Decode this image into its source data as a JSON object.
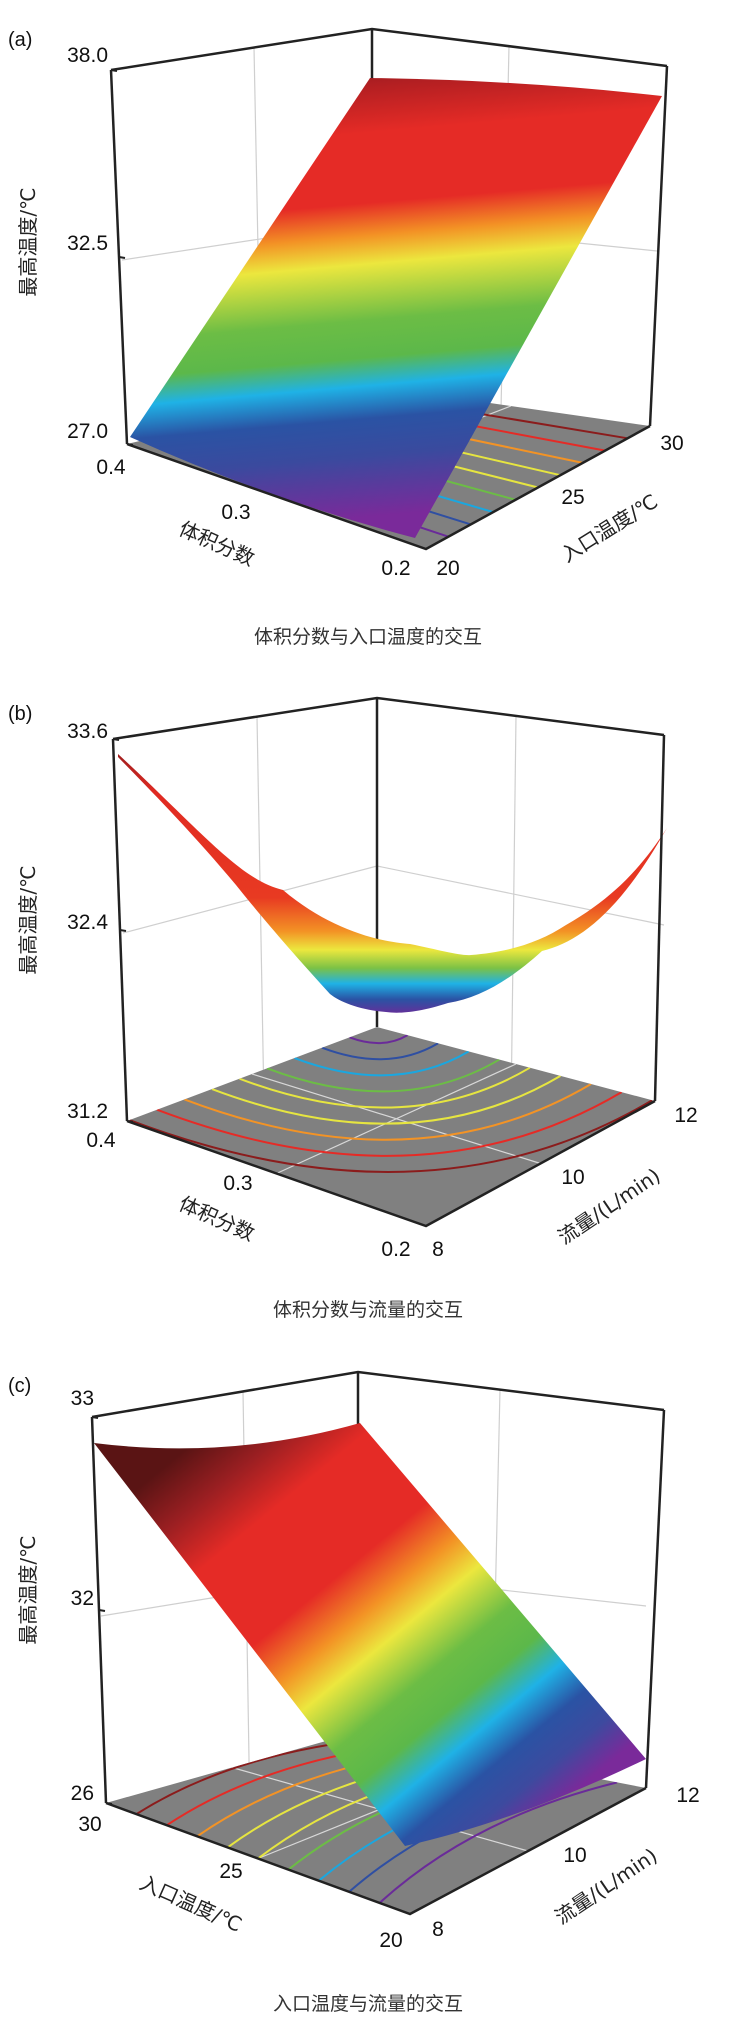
{
  "chart_data": [
    {
      "type": "surface",
      "panel_label": "(a)",
      "title": "体积分数与入口温度的交互",
      "xlabel": "体积分数",
      "ylabel": "入口温度/℃",
      "zlabel": "最高温度/℃",
      "x_ticks": [
        "0.4",
        "0.3",
        "0.2"
      ],
      "y_ticks": [
        "20",
        "25",
        "30"
      ],
      "z_ticks": [
        "27.0",
        "32.5",
        "38.0"
      ],
      "xlim": [
        0.2,
        0.4
      ],
      "ylim": [
        20,
        30
      ],
      "zlim": [
        27.0,
        38.0
      ],
      "surface_corners": {
        "x": [
          0.2,
          0.4,
          0.2,
          0.4
        ],
        "y": [
          20,
          20,
          30,
          30
        ],
        "z": [
          27.3,
          27.2,
          36.6,
          36.2
        ]
      }
    },
    {
      "type": "surface",
      "panel_label": "(b)",
      "title": "体积分数与流量的交互",
      "xlabel": "体积分数",
      "ylabel": "流量/(L/min)",
      "zlabel": "最高温度/℃",
      "x_ticks": [
        "0.4",
        "0.3",
        "0.2"
      ],
      "y_ticks": [
        "8",
        "10",
        "12"
      ],
      "z_ticks": [
        "31.2",
        "32.4",
        "33.6"
      ],
      "xlim": [
        0.2,
        0.4
      ],
      "ylim": [
        8,
        12
      ],
      "zlim": [
        31.2,
        33.6
      ],
      "surface_notes": {
        "min_z": 31.9,
        "max_z_at_x0.4": 33.4,
        "max_z_at_y12": 33.0
      }
    },
    {
      "type": "surface",
      "panel_label": "(c)",
      "title": "入口温度与流量的交互",
      "xlabel": "入口温度/℃",
      "ylabel": "流量/(L/min)",
      "zlabel": "最高温度/℃",
      "x_ticks": [
        "30",
        "25",
        "20"
      ],
      "y_ticks": [
        "8",
        "10",
        "12"
      ],
      "z_ticks": [
        "26",
        "32",
        "33"
      ],
      "xlim": [
        20,
        30
      ],
      "ylim": [
        8,
        12
      ],
      "zlim": [
        26,
        33
      ],
      "surface_corners": {
        "x": [
          30,
          30,
          20,
          20
        ],
        "y": [
          8,
          12,
          8,
          12
        ],
        "z": [
          32.6,
          32.7,
          26.6,
          27.3
        ]
      }
    }
  ],
  "colors": {
    "floor": "#808080",
    "ramp": [
      "#6a2b99",
      "#2f4fa2",
      "#1aa7e0",
      "#6cbd45",
      "#e6e540",
      "#f39325",
      "#e52b26",
      "#8b1c1c"
    ]
  }
}
